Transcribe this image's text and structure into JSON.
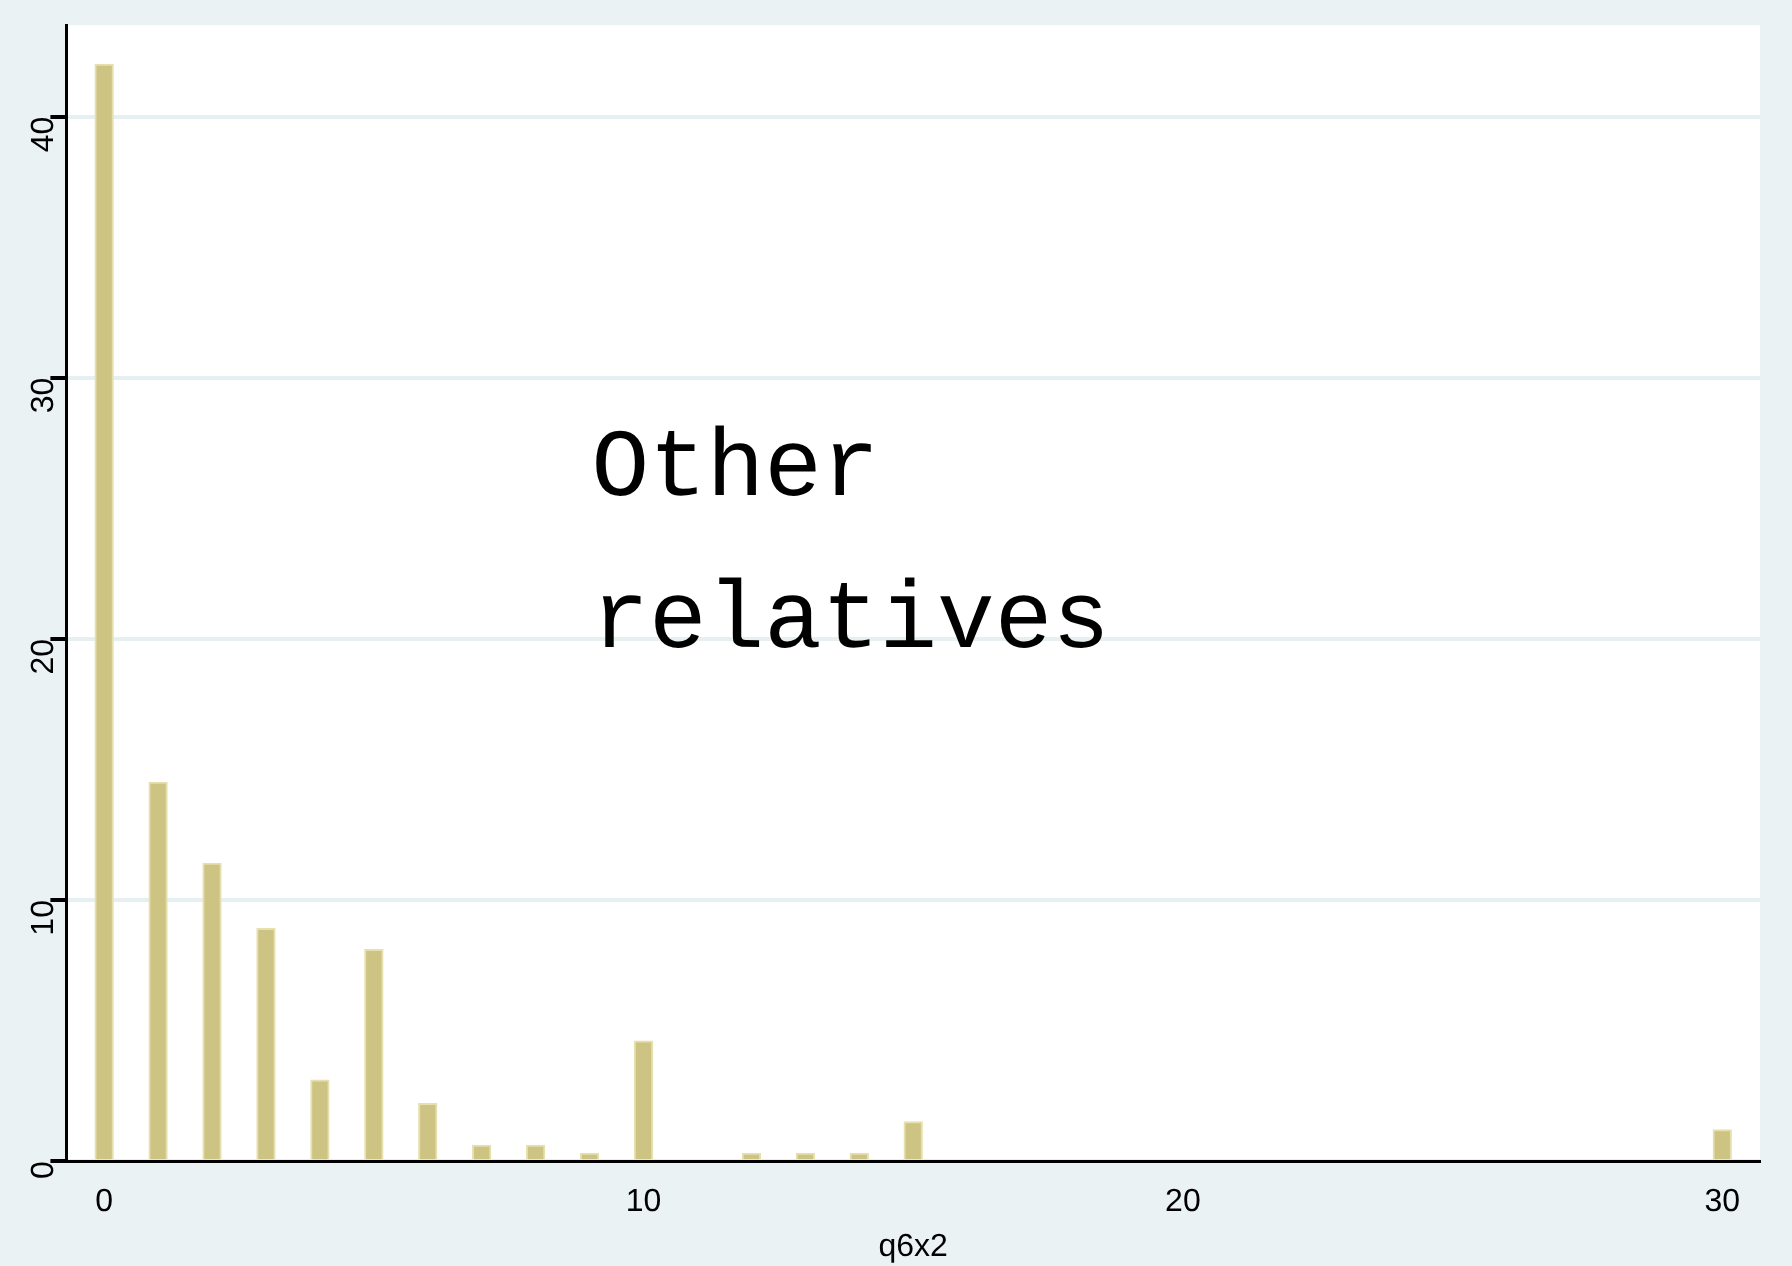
{
  "chart_data": {
    "type": "bar",
    "xlabel": "q6x2",
    "annotations": [
      "Other relatives"
    ],
    "x": [
      0,
      1,
      2,
      3,
      4,
      5,
      6,
      7,
      8,
      9,
      10,
      12,
      13,
      14,
      15,
      30
    ],
    "values": [
      42,
      14.5,
      11.4,
      8.9,
      3.1,
      8.1,
      2.2,
      0.6,
      0.6,
      0.3,
      4.6,
      0.3,
      0.3,
      0.3,
      1.5,
      1.2
    ],
    "color": "#cdc383",
    "xlim": [
      -0.7,
      30.7
    ],
    "xticks": [
      0,
      10,
      20,
      30
    ],
    "ylim": [
      0,
      43.5
    ],
    "yticks": [
      0,
      10,
      20,
      30,
      40
    ],
    "grid": "y",
    "legend": false
  }
}
